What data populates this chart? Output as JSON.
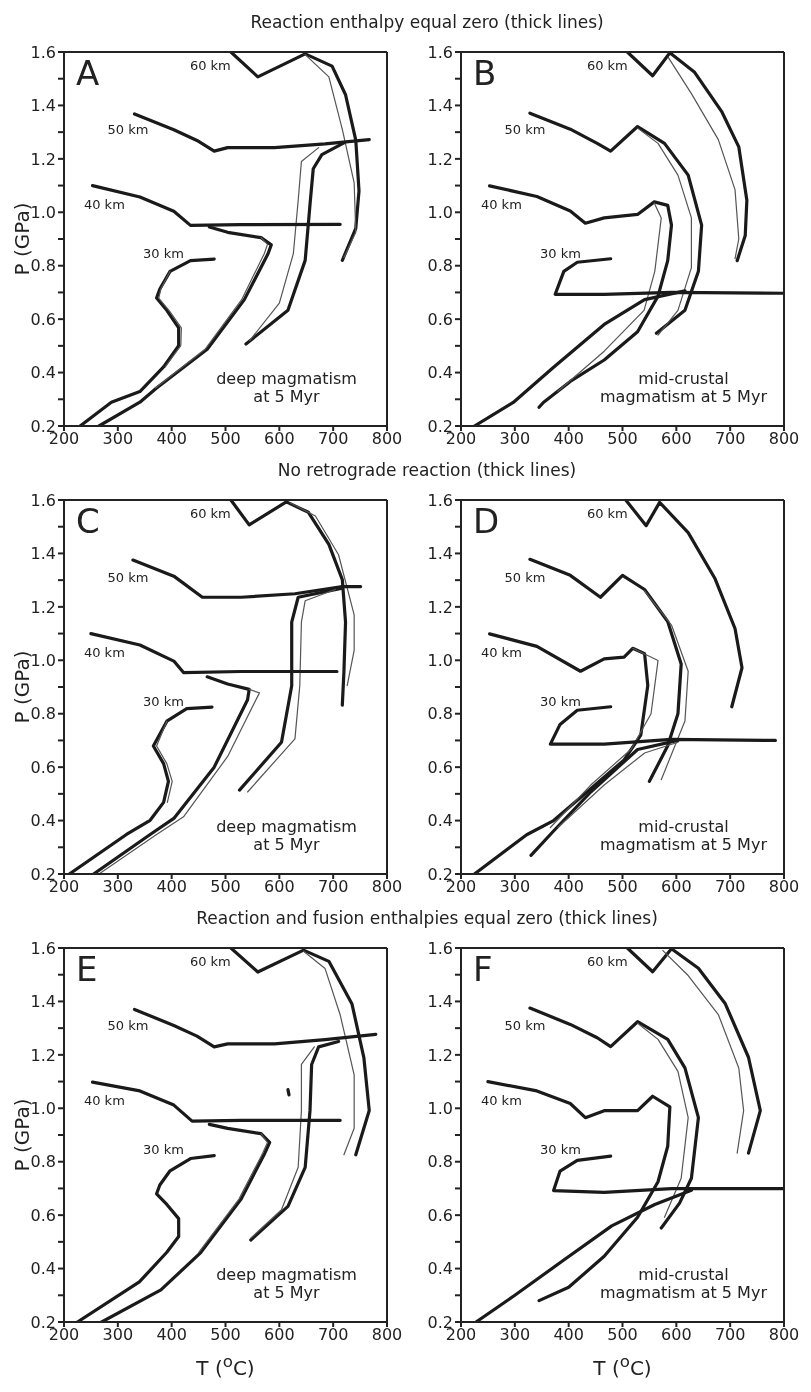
{
  "chart_data": [
    {
      "type": "line",
      "title": "Reaction enthalpy equal zero (thick lines)",
      "ylabel": "P (GPa)",
      "xlim": [
        200,
        800
      ],
      "ylim": [
        0.2,
        1.6
      ],
      "xticks": [
        200,
        300,
        400,
        500,
        600,
        700,
        800
      ],
      "yticks": [
        0.2,
        {
          "value": 0.3,
          "label": null
        },
        0.4,
        {
          "value": 0.5,
          "label": null
        },
        0.6,
        {
          "value": 0.7,
          "label": null
        },
        0.8,
        {
          "value": 0.9,
          "label": null
        },
        {
          "value": 1,
          "label": "1.0"
        },
        {
          "value": 1.1,
          "label": null
        },
        1.2,
        {
          "value": 1.3,
          "label": null
        },
        1.4,
        {
          "value": 1.5,
          "label": null
        },
        1.6
      ],
      "annotations": [
        "A",
        "deep magmatism at 5 Myr",
        "60 km",
        "50 km",
        "40 km",
        "30 km"
      ],
      "series": [
        {
          "color": "#1a1a1a",
          "x": [
            510,
            560,
            648,
            698,
            723,
            742,
            748,
            742,
            717
          ],
          "values": [
            1.6,
            1.507,
            1.593,
            1.547,
            1.44,
            1.27,
            1.08,
            0.94,
            0.82
          ]
        },
        {
          "color": "#555555",
          "x": [
            648,
            692,
            717,
            739,
            742,
            720
          ],
          "values": [
            1.59,
            1.507,
            1.31,
            1.11,
            0.925,
            0.83
          ]
        },
        {
          "color": "#1a1a1a",
          "x": [
            331,
            404,
            447,
            479,
            504,
            591,
            685,
            767
          ],
          "values": [
            1.368,
            1.309,
            1.269,
            1.229,
            1.242,
            1.242,
            1.256,
            1.272
          ]
        },
        {
          "color": "#1a1a1a",
          "x": [
            720,
            679,
            663,
            657,
            648,
            616,
            538
          ],
          "values": [
            1.26,
            1.216,
            1.163,
            1.03,
            0.82,
            0.633,
            0.507
          ]
        },
        {
          "color": "#555555",
          "x": [
            673,
            641,
            635,
            626,
            600,
            545
          ],
          "values": [
            1.242,
            1.19,
            1.044,
            0.845,
            0.66,
            0.52
          ]
        },
        {
          "color": "#1a1a1a",
          "x": [
            253,
            341,
            404,
            435,
            529,
            713
          ],
          "values": [
            1.1,
            1.057,
            1.004,
            0.951,
            0.954,
            0.955
          ]
        },
        {
          "color": "#1a1a1a",
          "x": [
            470,
            504,
            566,
            585,
            579,
            535,
            466,
            372,
            341,
            265
          ],
          "values": [
            0.945,
            0.925,
            0.905,
            0.878,
            0.845,
            0.673,
            0.487,
            0.342,
            0.289,
            0.2
          ]
        },
        {
          "color": "#555555",
          "x": [
            566,
            578,
            572,
            530,
            462,
            370
          ],
          "values": [
            0.905,
            0.88,
            0.845,
            0.673,
            0.487,
            0.342
          ]
        },
        {
          "color": "#1a1a1a",
          "x": [
            479,
            435,
            397,
            378,
            372,
            391,
            413,
            413,
            385,
            341,
            288,
            230
          ],
          "values": [
            0.825,
            0.819,
            0.779,
            0.713,
            0.679,
            0.633,
            0.567,
            0.501,
            0.421,
            0.329,
            0.289,
            0.2
          ]
        },
        {
          "color": "#555555",
          "x": [
            397,
            380,
            376,
            395,
            418,
            417,
            388
          ],
          "values": [
            0.779,
            0.713,
            0.679,
            0.633,
            0.567,
            0.501,
            0.421
          ]
        }
      ]
    },
    {
      "type": "line",
      "xlim": [
        200,
        800
      ],
      "ylim": [
        0.2,
        1.6
      ],
      "xticks": [
        200,
        300,
        400,
        500,
        600,
        700,
        800
      ],
      "yticks": [
        0.2,
        {
          "value": 0.3,
          "label": null
        },
        0.4,
        {
          "value": 0.5,
          "label": null
        },
        0.6,
        {
          "value": 0.7,
          "label": null
        },
        0.8,
        {
          "value": 0.9,
          "label": null
        },
        {
          "value": 1,
          "label": "1.0"
        },
        {
          "value": 1.1,
          "label": null
        },
        1.2,
        {
          "value": 1.3,
          "label": null
        },
        1.4,
        {
          "value": 1.5,
          "label": null
        },
        1.6
      ],
      "annotations": [
        "B",
        "mid-crustal magmatism at 5 Myr",
        "60 km",
        "50 km",
        "40 km",
        "30 km"
      ],
      "series": [
        {
          "color": "#1a1a1a",
          "x": [
            509,
            556,
            588,
            634,
            684,
            716,
            731,
            728,
            713
          ],
          "values": [
            1.6,
            1.511,
            1.597,
            1.524,
            1.378,
            1.245,
            1.045,
            0.913,
            0.819
          ]
        },
        {
          "color": "#555555",
          "x": [
            585,
            628,
            678,
            709,
            716,
            709
          ],
          "values": [
            1.58,
            1.444,
            1.272,
            1.085,
            0.9,
            0.826
          ]
        },
        {
          "color": "#1a1a1a",
          "x": [
            328,
            403,
            453,
            478,
            528,
            578,
            622,
            647,
            641,
            616,
            563
          ],
          "values": [
            1.371,
            1.311,
            1.258,
            1.229,
            1.321,
            1.258,
            1.139,
            0.952,
            0.779,
            0.633,
            0.547
          ]
        },
        {
          "color": "#555555",
          "x": [
            528,
            566,
            603,
            628,
            628,
            603,
            566
          ],
          "values": [
            1.315,
            1.258,
            1.139,
            0.979,
            0.793,
            0.633,
            0.54
          ]
        },
        {
          "color": "#1a1a1a",
          "x": [
            253,
            341,
            403,
            431,
            466,
            528,
            559,
            584,
            591,
            584,
            566,
            528,
            466,
            403,
            353,
            345
          ],
          "values": [
            1.099,
            1.059,
            1.005,
            0.959,
            0.979,
            0.992,
            1.039,
            1.026,
            0.952,
            0.819,
            0.686,
            0.553,
            0.447,
            0.367,
            0.288,
            0.27
          ]
        },
        {
          "color": "#555555",
          "x": [
            559,
            572,
            560,
            540,
            466,
            380
          ],
          "values": [
            1.035,
            0.979,
            0.779,
            0.633,
            0.48,
            0.33
          ]
        },
        {
          "color": "#1a1a1a",
          "x": [
            478,
            416,
            391,
            375,
            466,
            591,
            800
          ],
          "values": [
            0.826,
            0.813,
            0.779,
            0.693,
            0.693,
            0.7,
            0.697
          ]
        },
        {
          "color": "#1a1a1a",
          "x": [
            225,
            297,
            372,
            466,
            541,
            616
          ],
          "values": [
            0.2,
            0.288,
            0.42,
            0.58,
            0.673,
            0.706
          ]
        }
      ]
    },
    {
      "type": "line",
      "title": "No retrograde reaction (thick lines)",
      "ylabel": "P (GPa)",
      "xlim": [
        200,
        800
      ],
      "ylim": [
        0.2,
        1.6
      ],
      "xticks": [
        200,
        300,
        400,
        500,
        600,
        700,
        800
      ],
      "yticks": [
        0.2,
        {
          "value": 0.3,
          "label": null
        },
        0.4,
        {
          "value": 0.5,
          "label": null
        },
        0.6,
        {
          "value": 0.7,
          "label": null
        },
        0.8,
        {
          "value": 0.9,
          "label": null
        },
        {
          "value": 1,
          "label": "1.0"
        },
        {
          "value": 1.1,
          "label": null
        },
        1.2,
        {
          "value": 1.3,
          "label": null
        },
        1.4,
        {
          "value": 1.5,
          "label": null
        },
        1.6
      ],
      "annotations": [
        "C",
        "deep magmatism at 5 Myr",
        "60 km",
        "50 km",
        "40 km",
        "30 km"
      ],
      "series": [
        {
          "color": "#1a1a1a",
          "x": [
            510,
            544,
            613,
            654,
            692,
            717,
            723,
            720,
            717
          ],
          "values": [
            1.6,
            1.507,
            1.593,
            1.554,
            1.434,
            1.302,
            1.143,
            0.958,
            0.832
          ]
        },
        {
          "color": "#555555",
          "x": [
            620,
            667,
            710,
            739,
            739,
            726
          ],
          "values": [
            1.59,
            1.54,
            1.395,
            1.17,
            1.037,
            0.905
          ]
        },
        {
          "color": "#1a1a1a",
          "x": [
            328,
            404,
            457,
            529,
            629,
            717,
            751
          ],
          "values": [
            1.375,
            1.315,
            1.236,
            1.236,
            1.249,
            1.276,
            1.276
          ]
        },
        {
          "color": "#1a1a1a",
          "x": [
            717,
            635,
            623,
            623,
            604,
            526
          ],
          "values": [
            1.27,
            1.236,
            1.143,
            0.905,
            0.693,
            0.514
          ]
        },
        {
          "color": "#555555",
          "x": [
            704,
            648,
            641,
            638,
            629,
            541
          ],
          "values": [
            1.265,
            1.223,
            1.143,
            0.905,
            0.706,
            0.507
          ]
        },
        {
          "color": "#1a1a1a",
          "x": [
            250,
            341,
            404,
            422,
            529,
            707
          ],
          "values": [
            1.1,
            1.057,
            0.997,
            0.954,
            0.958,
            0.958
          ]
        },
        {
          "color": "#1a1a1a",
          "x": [
            466,
            504,
            544,
            541,
            479,
            404,
            360,
            255
          ],
          "values": [
            0.938,
            0.911,
            0.891,
            0.852,
            0.6,
            0.408,
            0.348,
            0.2
          ]
        },
        {
          "color": "#555555",
          "x": [
            544,
            563,
            504,
            422,
            372,
            265
          ],
          "values": [
            0.891,
            0.878,
            0.64,
            0.414,
            0.348,
            0.2
          ]
        },
        {
          "color": "#1a1a1a",
          "x": [
            475,
            428,
            391,
            366,
            385,
            394,
            385,
            360,
            316,
            210
          ],
          "values": [
            0.825,
            0.819,
            0.772,
            0.679,
            0.613,
            0.547,
            0.468,
            0.401,
            0.348,
            0.2
          ]
        },
        {
          "color": "#555555",
          "x": [
            391,
            372,
            391,
            401,
            392
          ],
          "values": [
            0.772,
            0.679,
            0.613,
            0.547,
            0.468
          ]
        }
      ]
    },
    {
      "type": "line",
      "xlim": [
        200,
        800
      ],
      "ylim": [
        0.2,
        1.6
      ],
      "xticks": [
        200,
        300,
        400,
        500,
        600,
        700,
        800
      ],
      "yticks": [
        0.2,
        {
          "value": 0.3,
          "label": null
        },
        0.4,
        {
          "value": 0.5,
          "label": null
        },
        0.6,
        {
          "value": 0.7,
          "label": null
        },
        0.8,
        {
          "value": 0.9,
          "label": null
        },
        {
          "value": 1,
          "label": "1.0"
        },
        {
          "value": 1.1,
          "label": null
        },
        1.2,
        {
          "value": 1.3,
          "label": null
        },
        1.4,
        {
          "value": 1.5,
          "label": null
        },
        1.6
      ],
      "annotations": [
        "D",
        "mid-crustal magmatism at 5 Myr",
        "60 km",
        "50 km",
        "40 km",
        "30 km"
      ],
      "series": [
        {
          "color": "#1a1a1a",
          "x": [
            506,
            544,
            569,
            622,
            672,
            709,
            722,
            703
          ],
          "values": [
            1.6,
            1.504,
            1.591,
            1.478,
            1.305,
            1.119,
            0.972,
            0.826
          ]
        },
        {
          "color": "#1a1a1a",
          "x": [
            328,
            403,
            459,
            500,
            541,
            584,
            609,
            603,
            584,
            550
          ],
          "values": [
            1.378,
            1.318,
            1.236,
            1.318,
            1.265,
            1.145,
            0.986,
            0.8,
            0.68,
            0.547
          ]
        },
        {
          "color": "#555555",
          "x": [
            541,
            591,
            622,
            616,
            572
          ],
          "values": [
            1.26,
            1.132,
            0.959,
            0.773,
            0.553
          ]
        },
        {
          "color": "#1a1a1a",
          "x": [
            253,
            341,
            422,
            466,
            503,
            519,
            541,
            547,
            534,
            503,
            434,
            372,
            322,
            225
          ],
          "values": [
            1.099,
            1.052,
            0.959,
            1.005,
            1.012,
            1.045,
            1.025,
            0.906,
            0.72,
            0.627,
            0.507,
            0.4,
            0.347,
            0.2
          ]
        },
        {
          "color": "#555555",
          "x": [
            519,
            566,
            553,
            516,
            441,
            366
          ],
          "values": [
            1.045,
            0.999,
            0.8,
            0.667,
            0.533,
            0.374
          ]
        },
        {
          "color": "#1a1a1a",
          "x": [
            478,
            416,
            384,
            366,
            466,
            591,
            784
          ],
          "values": [
            0.826,
            0.813,
            0.76,
            0.686,
            0.686,
            0.704,
            0.7
          ]
        },
        {
          "color": "#1a1a1a",
          "x": [
            330,
            372,
            441,
            528,
            603
          ],
          "values": [
            0.27,
            0.361,
            0.507,
            0.666,
            0.7
          ]
        },
        {
          "color": "#555555",
          "x": [
            380,
            466,
            541,
            603
          ],
          "values": [
            0.374,
            0.533,
            0.653,
            0.693
          ]
        }
      ]
    },
    {
      "type": "line",
      "title": "Reaction and fusion enthalpies equal zero (thick lines)",
      "xlabel": "T ($^{o}$C)",
      "ylabel": "P (GPa)",
      "xlim": [
        200,
        800
      ],
      "ylim": [
        0.2,
        1.6
      ],
      "xticks": [
        200,
        300,
        400,
        500,
        600,
        700,
        800
      ],
      "yticks": [
        0.2,
        {
          "value": 0.3,
          "label": null
        },
        0.4,
        {
          "value": 0.5,
          "label": null
        },
        0.6,
        {
          "value": 0.7,
          "label": null
        },
        0.8,
        {
          "value": 0.9,
          "label": null
        },
        {
          "value": 1,
          "label": "1.0"
        },
        {
          "value": 1.1,
          "label": null
        },
        1.2,
        {
          "value": 1.3,
          "label": null
        },
        1.4,
        {
          "value": 1.5,
          "label": null
        },
        1.6
      ],
      "annotations": [
        "E",
        "deep magmatism at 5 Myr",
        "60 km",
        "50 km",
        "40 km",
        "30 km"
      ],
      "series": [
        {
          "color": "#1a1a1a",
          "x": [
            510,
            560,
            645,
            692,
            735,
            757,
            767,
            742
          ],
          "values": [
            1.6,
            1.51,
            1.592,
            1.55,
            1.39,
            1.19,
            0.992,
            0.826
          ]
        },
        {
          "color": "#555555",
          "x": [
            645,
            685,
            713,
            739,
            739,
            720
          ],
          "values": [
            1.588,
            1.523,
            1.35,
            1.125,
            0.925,
            0.826
          ]
        },
        {
          "color": "#1a1a1a",
          "x": [
            331,
            404,
            447,
            479,
            504,
            591,
            685,
            779
          ],
          "values": [
            1.37,
            1.31,
            1.27,
            1.23,
            1.241,
            1.241,
            1.257,
            1.277
          ]
        },
        {
          "color": "#1a1a1a",
          "x": [
            710,
            673,
            660,
            657,
            648,
            616,
            547
          ],
          "values": [
            1.25,
            1.23,
            1.164,
            0.992,
            0.779,
            0.633,
            0.507
          ]
        },
        {
          "color": "#555555",
          "x": [
            665,
            641,
            641,
            635,
            604,
            547
          ],
          "values": [
            1.23,
            1.164,
            0.992,
            0.779,
            0.62,
            0.514
          ]
        },
        {
          "color": "#1a1a1a",
          "x": [
            253,
            341,
            404,
            438,
            529,
            713
          ],
          "values": [
            1.098,
            1.065,
            1.012,
            0.952,
            0.955,
            0.955
          ]
        },
        {
          "color": "#1a1a1a",
          "x": [
            470,
            504,
            566,
            582,
            573,
            529,
            454,
            380,
            270
          ],
          "values": [
            0.94,
            0.925,
            0.905,
            0.872,
            0.832,
            0.66,
            0.46,
            0.32,
            0.2
          ]
        },
        {
          "color": "#555555",
          "x": [
            566,
            578,
            569,
            525,
            450
          ],
          "values": [
            0.905,
            0.872,
            0.832,
            0.66,
            0.46
          ]
        },
        {
          "color": "#1a1a1a",
          "x": [
            616,
            618
          ],
          "values": [
            1.07,
            1.05
          ]
        },
        {
          "color": "#1a1a1a",
          "x": [
            479,
            435,
            397,
            378,
            372,
            391,
            413,
            413,
            391,
            340,
            225
          ],
          "values": [
            0.823,
            0.812,
            0.766,
            0.713,
            0.68,
            0.64,
            0.587,
            0.52,
            0.461,
            0.35,
            0.2
          ]
        }
      ]
    },
    {
      "type": "line",
      "xlabel": "T ($^{o}$C)",
      "xlim": [
        200,
        800
      ],
      "ylim": [
        0.2,
        1.6
      ],
      "xticks": [
        200,
        300,
        400,
        500,
        600,
        700,
        800
      ],
      "yticks": [
        0.2,
        {
          "value": 0.3,
          "label": null
        },
        0.4,
        {
          "value": 0.5,
          "label": null
        },
        0.6,
        {
          "value": 0.7,
          "label": null
        },
        0.8,
        {
          "value": 0.9,
          "label": null
        },
        {
          "value": 1,
          "label": "1.0"
        },
        {
          "value": 1.1,
          "label": null
        },
        1.2,
        {
          "value": 1.3,
          "label": null
        },
        1.4,
        {
          "value": 1.5,
          "label": null
        },
        1.6
      ],
      "annotations": [
        "F",
        "mid-crustal magmatism at 5 Myr",
        "60 km",
        "50 km",
        "40 km",
        "30 km"
      ],
      "series": [
        {
          "color": "#1a1a1a",
          "x": [
            509,
            556,
            591,
            641,
            691,
            734,
            756,
            734
          ],
          "values": [
            1.6,
            1.511,
            1.597,
            1.524,
            1.391,
            1.191,
            0.991,
            0.832
          ]
        },
        {
          "color": "#555555",
          "x": [
            575,
            622,
            678,
            716,
            725,
            713
          ],
          "values": [
            1.59,
            1.497,
            1.351,
            1.151,
            0.991,
            0.832
          ]
        },
        {
          "color": "#1a1a1a",
          "x": [
            328,
            403,
            453,
            478,
            528,
            584,
            616,
            641,
            628,
            606,
            572
          ],
          "values": [
            1.375,
            1.314,
            1.264,
            1.231,
            1.324,
            1.258,
            1.151,
            0.965,
            0.738,
            0.645,
            0.552
          ]
        },
        {
          "color": "#555555",
          "x": [
            528,
            566,
            603,
            622,
            609,
            578
          ],
          "values": [
            1.318,
            1.258,
            1.138,
            0.965,
            0.738,
            0.592
          ]
        },
        {
          "color": "#1a1a1a",
          "x": [
            250,
            341,
            403,
            431,
            466,
            528,
            556,
            588,
            584,
            566,
            528,
            466,
            400,
            345
          ],
          "values": [
            1.1,
            1.065,
            1.018,
            0.965,
            0.991,
            0.991,
            1.045,
            1.005,
            0.858,
            0.725,
            0.592,
            0.446,
            0.33,
            0.28
          ]
        },
        {
          "color": "#1a1a1a",
          "x": [
            478,
            416,
            384,
            372,
            466,
            591,
            800
          ],
          "values": [
            0.821,
            0.805,
            0.765,
            0.692,
            0.685,
            0.699,
            0.699
          ]
        },
        {
          "color": "#1a1a1a",
          "x": [
            228,
            300,
            391,
            480,
            560,
            628
          ],
          "values": [
            0.2,
            0.3,
            0.432,
            0.56,
            0.64,
            0.693
          ]
        }
      ]
    }
  ]
}
